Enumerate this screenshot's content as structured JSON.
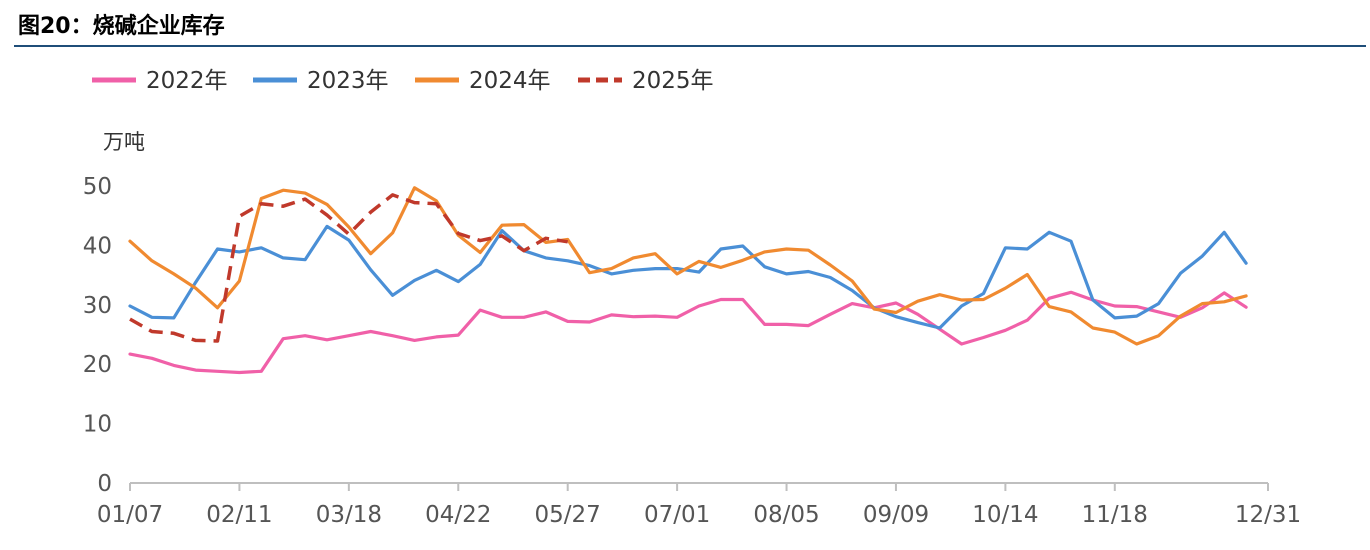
{
  "figure": {
    "title": "图20：烧碱企业库存",
    "title_rule_color": "#1f4e79"
  },
  "chart_data": {
    "type": "line",
    "title": "图20：烧碱企业库存",
    "ylabel": "万吨",
    "xlabel": "",
    "ylim": [
      0,
      50
    ],
    "y_ticks": [
      0,
      10,
      20,
      30,
      40,
      50
    ],
    "x_count": 53,
    "x_tick_labels": [
      "01/07",
      "02/11",
      "03/18",
      "04/22",
      "05/27",
      "07/01",
      "08/05",
      "09/09",
      "10/14",
      "11/18",
      "12/31"
    ],
    "x_tick_positions": [
      0,
      5,
      10,
      15,
      20,
      25,
      30,
      35,
      40,
      45,
      52
    ],
    "grid": false,
    "legend_position": "top-left",
    "series": [
      {
        "name": "2022年",
        "color": "#f060a8",
        "dash": false,
        "values": [
          21.7,
          21.0,
          19.8,
          19.0,
          18.8,
          18.6,
          18.8,
          24.3,
          24.8,
          24.1,
          24.8,
          25.5,
          24.8,
          24.0,
          24.6,
          24.9,
          29.1,
          27.9,
          27.9,
          28.8,
          27.2,
          27.1,
          28.3,
          28.0,
          28.1,
          27.9,
          29.8,
          30.9,
          30.9,
          26.7,
          26.7,
          26.5,
          28.4,
          30.2,
          29.5,
          30.3,
          28.4,
          25.9,
          23.4,
          24.5,
          25.7,
          27.4,
          31.1,
          32.1,
          30.8,
          29.8,
          29.7,
          28.8,
          27.9,
          29.5,
          32.0,
          29.6
        ]
      },
      {
        "name": "2023年",
        "color": "#4a8fd6",
        "dash": false,
        "values": [
          29.8,
          27.9,
          27.8,
          33.8,
          39.4,
          38.9,
          39.6,
          37.9,
          37.6,
          43.2,
          40.9,
          35.9,
          31.6,
          34.1,
          35.8,
          33.9,
          36.8,
          42.5,
          39.1,
          37.9,
          37.4,
          36.6,
          35.2,
          35.8,
          36.1,
          36.1,
          35.5,
          39.4,
          39.9,
          36.4,
          35.2,
          35.6,
          34.6,
          32.4,
          29.5,
          28.0,
          27.0,
          26.1,
          29.8,
          31.9,
          39.6,
          39.4,
          42.2,
          40.7,
          30.8,
          27.8,
          28.1,
          30.2,
          35.3,
          38.2,
          42.2,
          37.0
        ]
      },
      {
        "name": "2024年",
        "color": "#f08a30",
        "dash": false,
        "values": [
          40.7,
          37.4,
          35.2,
          32.8,
          29.5,
          34.0,
          47.9,
          49.3,
          48.8,
          46.9,
          43.1,
          38.6,
          42.1,
          49.7,
          47.5,
          41.7,
          38.8,
          43.4,
          43.5,
          40.5,
          41.0,
          35.4,
          36.1,
          37.9,
          38.6,
          35.2,
          37.3,
          36.3,
          37.5,
          38.9,
          39.4,
          39.2,
          36.7,
          34.0,
          29.3,
          28.7,
          30.6,
          31.7,
          30.8,
          30.9,
          32.8,
          35.1,
          29.7,
          28.8,
          26.1,
          25.4,
          23.4,
          24.8,
          28.1,
          30.2,
          30.5,
          31.5
        ]
      },
      {
        "name": "2025年",
        "color": "#c0392b",
        "dash": true,
        "values": [
          27.6,
          25.5,
          25.2,
          24.0,
          23.9,
          44.9,
          47.0,
          46.6,
          47.8,
          45.1,
          41.9,
          45.6,
          48.5,
          47.2,
          47.0,
          42.0,
          40.8,
          41.6,
          39.1,
          41.2,
          40.6
        ]
      }
    ]
  }
}
